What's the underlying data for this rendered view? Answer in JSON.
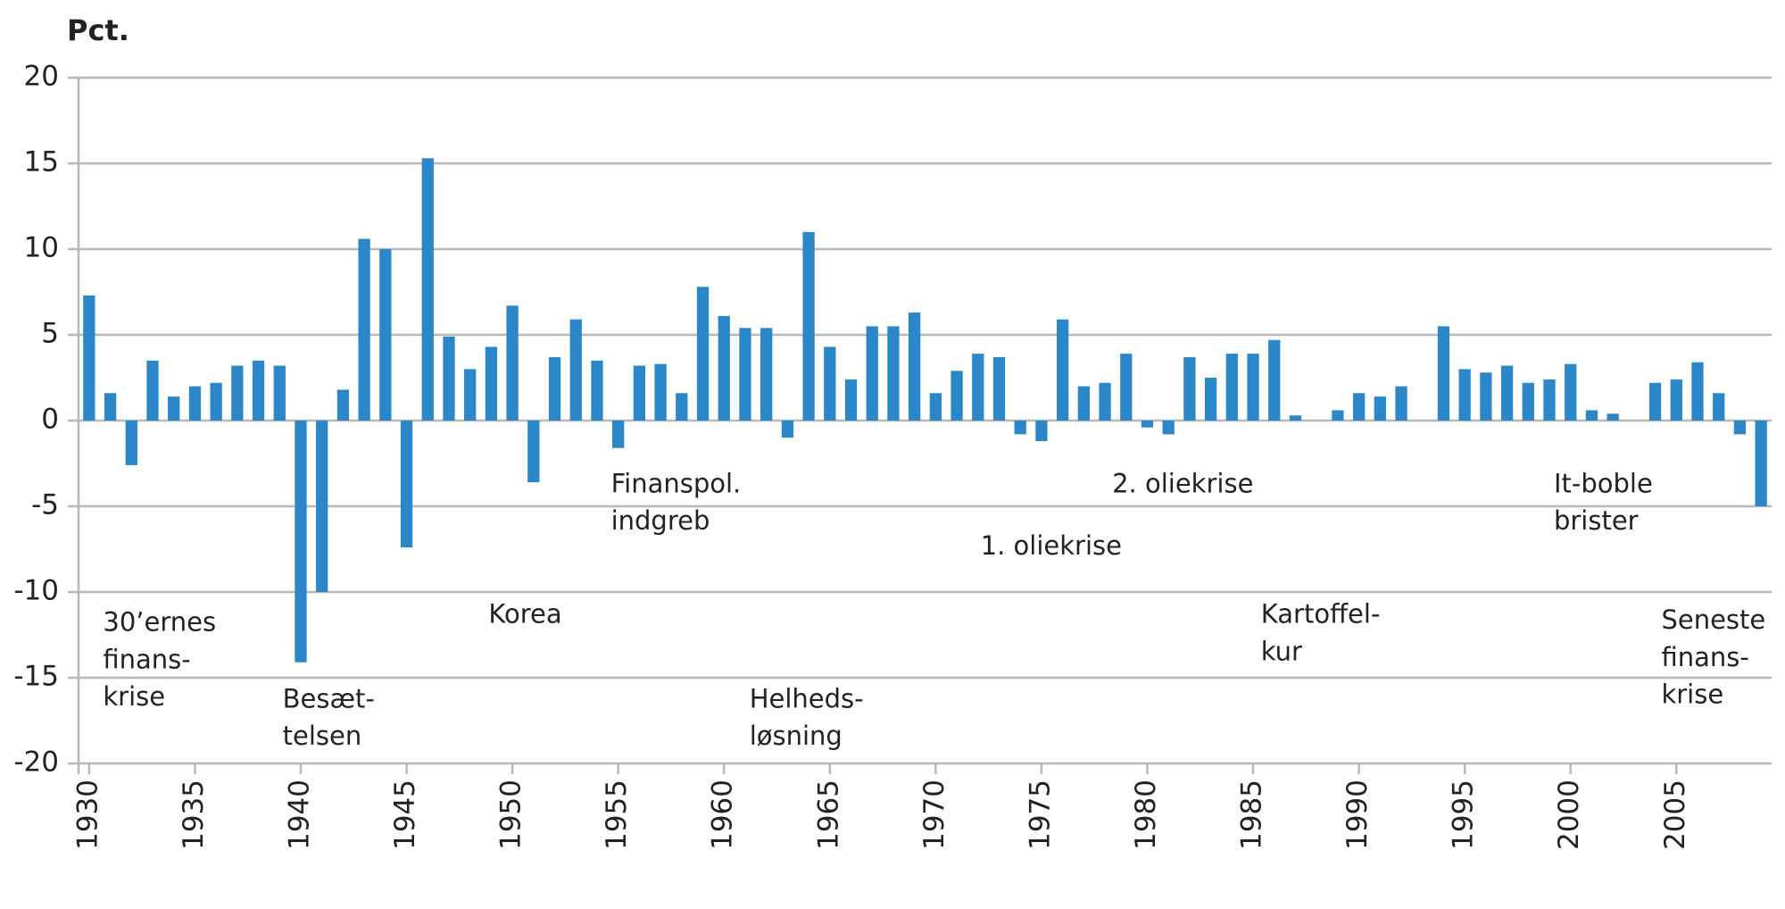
{
  "chart_data": {
    "type": "bar",
    "y_label": "Pct.",
    "color": "#2b87c8",
    "grid": true,
    "x": [
      1930,
      1931,
      1932,
      1933,
      1934,
      1935,
      1936,
      1937,
      1938,
      1939,
      1940,
      1941,
      1942,
      1943,
      1944,
      1945,
      1946,
      1947,
      1948,
      1949,
      1950,
      1951,
      1952,
      1953,
      1954,
      1955,
      1956,
      1957,
      1958,
      1959,
      1960,
      1961,
      1962,
      1963,
      1964,
      1965,
      1966,
      1967,
      1968,
      1969,
      1970,
      1971,
      1972,
      1973,
      1974,
      1975,
      1976,
      1977,
      1978,
      1979,
      1980,
      1981,
      1982,
      1983,
      1984,
      1985,
      1986,
      1987,
      1988,
      1989,
      1990,
      1991,
      1992,
      1993,
      1994,
      1995,
      1996,
      1997,
      1998,
      1999,
      2000,
      2001,
      2002,
      2003,
      2004,
      2005,
      2006,
      2007,
      2008,
      2009
    ],
    "values": [
      7.3,
      1.6,
      -2.6,
      3.5,
      1.4,
      2.0,
      2.2,
      3.2,
      3.5,
      3.2,
      -14.1,
      -10.0,
      1.8,
      10.6,
      10.0,
      -7.4,
      15.3,
      4.9,
      3.0,
      4.3,
      6.7,
      -3.6,
      3.7,
      5.9,
      3.5,
      -1.6,
      3.2,
      3.3,
      1.6,
      7.8,
      6.1,
      5.4,
      5.4,
      -1.0,
      11.0,
      4.3,
      2.4,
      5.5,
      5.5,
      6.3,
      1.6,
      2.9,
      3.9,
      3.7,
      -0.8,
      -1.2,
      5.9,
      2.0,
      2.2,
      3.9,
      -0.4,
      -0.8,
      3.7,
      2.5,
      3.9,
      3.9,
      4.7,
      0.3,
      0.0,
      0.6,
      1.6,
      1.4,
      2.0,
      0.0,
      5.5,
      3.0,
      2.8,
      3.2,
      2.2,
      2.4,
      3.3,
      0.6,
      0.4,
      0.0,
      2.2,
      2.4,
      3.4,
      1.6,
      -0.8,
      -5.0
    ],
    "xlim": [
      1929.5,
      2009.5
    ],
    "xticks": [
      1930,
      1935,
      1940,
      1945,
      1950,
      1955,
      1960,
      1965,
      1970,
      1975,
      1980,
      1985,
      1990,
      1995,
      2000,
      2005
    ],
    "ylim": [
      -20,
      20
    ],
    "yticks": [
      -20,
      -15,
      -10,
      -5,
      0,
      5,
      10,
      15,
      20
    ],
    "annotations": [
      [
        "30’ernes",
        "finans-",
        "krise"
      ],
      [
        "Besæt-",
        "telsen"
      ],
      [
        "Korea"
      ],
      [
        "Finanspol.",
        "indgreb"
      ],
      [
        "Helheds-",
        "løsning"
      ],
      [
        "1. oliekrise"
      ],
      [
        "2. oliekrise"
      ],
      [
        "Kartoffel-",
        "kur"
      ],
      [
        "It-boble",
        "brister"
      ],
      [
        "Seneste",
        "finans-",
        "krise"
      ]
    ]
  }
}
